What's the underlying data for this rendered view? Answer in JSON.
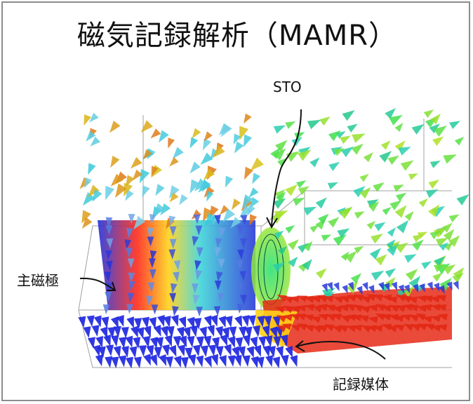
{
  "title": "磁気記録解析（MAMR）",
  "labels": {
    "sto": "STO",
    "main_pole": "主磁極",
    "medium": "記録媒体"
  },
  "colors": {
    "frame": "#8c8c8c",
    "field_low": "#1f2bd9",
    "field_mid": "#16d8b0",
    "field_high": "#e8201a",
    "wireframe": "#9a9a9a"
  }
}
